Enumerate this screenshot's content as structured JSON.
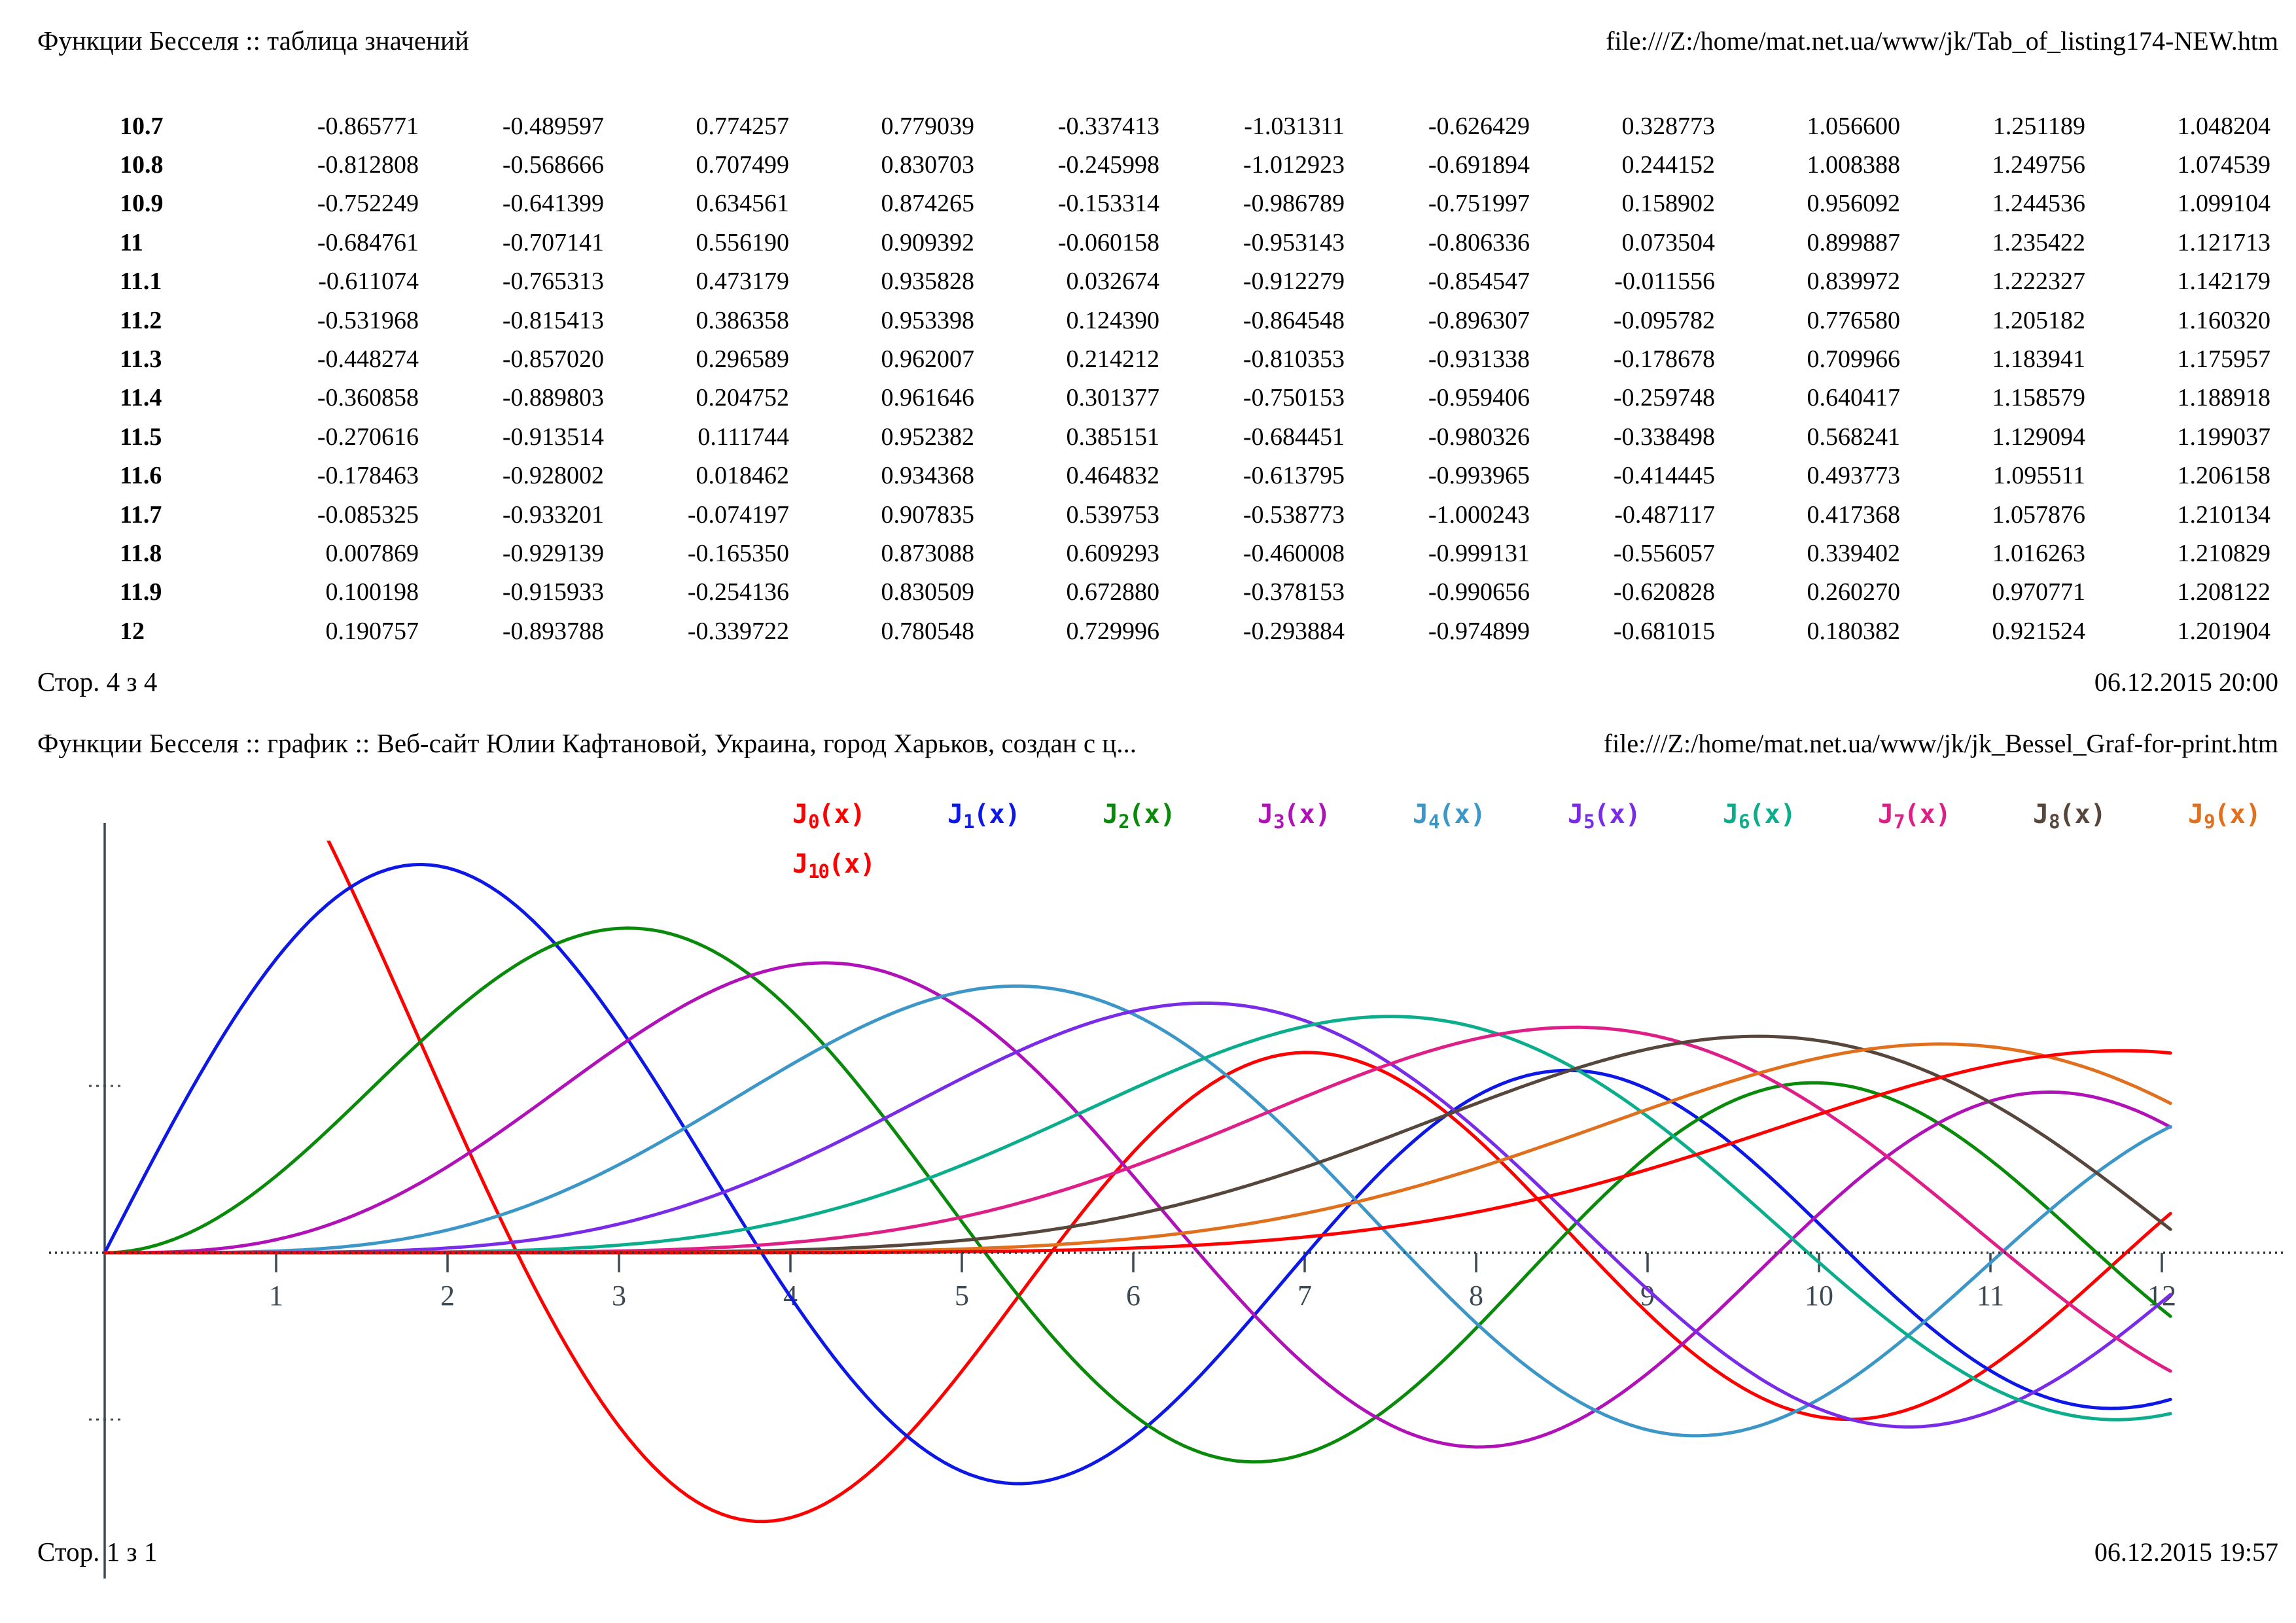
{
  "page1": {
    "title": "Функции Бесселя :: таблица значений",
    "url": "file:///Z:/home/mat.net.ua/www/jk/Tab_of_listing174-NEW.htm",
    "footer_page": "Стор. 4 з 4",
    "footer_datetime": "06.12.2015 20:00",
    "table": {
      "rows": [
        {
          "x": "10.7",
          "values": [
            "-0.865771",
            "-0.489597",
            "0.774257",
            "0.779039",
            "-0.337413",
            "-1.031311",
            "-0.626429",
            "0.328773",
            "1.056600",
            "1.251189",
            "1.048204"
          ]
        },
        {
          "x": "10.8",
          "values": [
            "-0.812808",
            "-0.568666",
            "0.707499",
            "0.830703",
            "-0.245998",
            "-1.012923",
            "-0.691894",
            "0.244152",
            "1.008388",
            "1.249756",
            "1.074539"
          ]
        },
        {
          "x": "10.9",
          "values": [
            "-0.752249",
            "-0.641399",
            "0.634561",
            "0.874265",
            "-0.153314",
            "-0.986789",
            "-0.751997",
            "0.158902",
            "0.956092",
            "1.244536",
            "1.099104"
          ]
        },
        {
          "x": "11",
          "values": [
            "-0.684761",
            "-0.707141",
            "0.556190",
            "0.909392",
            "-0.060158",
            "-0.953143",
            "-0.806336",
            "0.073504",
            "0.899887",
            "1.235422",
            "1.121713"
          ]
        },
        {
          "x": "11.1",
          "values": [
            "-0.611074",
            "-0.765313",
            "0.473179",
            "0.935828",
            "0.032674",
            "-0.912279",
            "-0.854547",
            "-0.011556",
            "0.839972",
            "1.222327",
            "1.142179"
          ]
        },
        {
          "x": "11.2",
          "values": [
            "-0.531968",
            "-0.815413",
            "0.386358",
            "0.953398",
            "0.124390",
            "-0.864548",
            "-0.896307",
            "-0.095782",
            "0.776580",
            "1.205182",
            "1.160320"
          ]
        },
        {
          "x": "11.3",
          "values": [
            "-0.448274",
            "-0.857020",
            "0.296589",
            "0.962007",
            "0.214212",
            "-0.810353",
            "-0.931338",
            "-0.178678",
            "0.709966",
            "1.183941",
            "1.175957"
          ]
        },
        {
          "x": "11.4",
          "values": [
            "-0.360858",
            "-0.889803",
            "0.204752",
            "0.961646",
            "0.301377",
            "-0.750153",
            "-0.959406",
            "-0.259748",
            "0.640417",
            "1.158579",
            "1.188918"
          ]
        },
        {
          "x": "11.5",
          "values": [
            "-0.270616",
            "-0.913514",
            "0.111744",
            "0.952382",
            "0.385151",
            "-0.684451",
            "-0.980326",
            "-0.338498",
            "0.568241",
            "1.129094",
            "1.199037"
          ]
        },
        {
          "x": "11.6",
          "values": [
            "-0.178463",
            "-0.928002",
            "0.018462",
            "0.934368",
            "0.464832",
            "-0.613795",
            "-0.993965",
            "-0.414445",
            "0.493773",
            "1.095511",
            "1.206158"
          ]
        },
        {
          "x": "11.7",
          "values": [
            "-0.085325",
            "-0.933201",
            "-0.074197",
            "0.907835",
            "0.539753",
            "-0.538773",
            "-1.000243",
            "-0.487117",
            "0.417368",
            "1.057876",
            "1.210134"
          ]
        },
        {
          "x": "11.8",
          "values": [
            "0.007869",
            "-0.929139",
            "-0.165350",
            "0.873088",
            "0.609293",
            "-0.460008",
            "-0.999131",
            "-0.556057",
            "0.339402",
            "1.016263",
            "1.210829"
          ]
        },
        {
          "x": "11.9",
          "values": [
            "0.100198",
            "-0.915933",
            "-0.254136",
            "0.830509",
            "0.672880",
            "-0.378153",
            "-0.990656",
            "-0.620828",
            "0.260270",
            "0.970771",
            "1.208122"
          ]
        },
        {
          "x": "12",
          "values": [
            "0.190757",
            "-0.893788",
            "-0.339722",
            "0.780548",
            "0.729996",
            "-0.293884",
            "-0.974899",
            "-0.681015",
            "0.180382",
            "0.921524",
            "1.201904"
          ]
        }
      ]
    }
  },
  "page2": {
    "title": "Функции Бесселя :: график :: Веб-сайт Юлии Кафтановой, Украина, город Харьков, создан с ц...",
    "url": "file:///Z:/home/mat.net.ua/www/jk/jk_Bessel_Graf-for-print.htm",
    "footer_page": "Стор. 1 з 1",
    "footer_datetime": "06.12.2015 19:57"
  },
  "chart_data": {
    "type": "line",
    "title": "",
    "xlabel": "",
    "ylabel": "",
    "x_range": [
      0,
      12.05
    ],
    "x_step": 0.05,
    "x_ticks": [
      1,
      2,
      3,
      4,
      5,
      6,
      7,
      8,
      9,
      10,
      11,
      12
    ],
    "y_ticks": [
      0.25,
      -0.25
    ],
    "ylim": [
      -0.62,
      0.62
    ],
    "grid": false,
    "legend_position": "top-inside",
    "y_function": "besselJ(order, x) — Bessel function of the first kind",
    "axis_color": "#3d4a54",
    "series": [
      {
        "name": "J0(x)",
        "label_base": "J",
        "label_sub": "0",
        "label_suffix": "(x)",
        "bessel_order": 0,
        "color": "#ff0000",
        "legend_row": 1
      },
      {
        "name": "J1(x)",
        "label_base": "J",
        "label_sub": "1",
        "label_suffix": "(x)",
        "bessel_order": 1,
        "color": "#0d17e6",
        "legend_row": 1
      },
      {
        "name": "J2(x)",
        "label_base": "J",
        "label_sub": "2",
        "label_suffix": "(x)",
        "bessel_order": 2,
        "color": "#0a8a0a",
        "legend_row": 1
      },
      {
        "name": "J3(x)",
        "label_base": "J",
        "label_sub": "3",
        "label_suffix": "(x)",
        "bessel_order": 3,
        "color": "#b012b8",
        "legend_row": 1
      },
      {
        "name": "J4(x)",
        "label_base": "J",
        "label_sub": "4",
        "label_suffix": "(x)",
        "bessel_order": 4,
        "color": "#3c96c8",
        "legend_row": 1
      },
      {
        "name": "J5(x)",
        "label_base": "J",
        "label_sub": "5",
        "label_suffix": "(x)",
        "bessel_order": 5,
        "color": "#7a2be8",
        "legend_row": 1
      },
      {
        "name": "J6(x)",
        "label_base": "J",
        "label_sub": "6",
        "label_suffix": "(x)",
        "bessel_order": 6,
        "color": "#0cad8c",
        "legend_row": 1
      },
      {
        "name": "J7(x)",
        "label_base": "J",
        "label_sub": "7",
        "label_suffix": "(x)",
        "bessel_order": 7,
        "color": "#de1f87",
        "legend_row": 1
      },
      {
        "name": "J8(x)",
        "label_base": "J",
        "label_sub": "8",
        "label_suffix": "(x)",
        "bessel_order": 8,
        "color": "#56463c",
        "legend_row": 1
      },
      {
        "name": "J9(x)",
        "label_base": "J",
        "label_sub": "9",
        "label_suffix": "(x)",
        "bessel_order": 9,
        "color": "#e0701e",
        "legend_row": 1
      },
      {
        "name": "J10(x)",
        "label_base": "J",
        "label_sub": "10",
        "label_suffix": "(x)",
        "bessel_order": 10,
        "color": "#ff0000",
        "legend_row": 2
      }
    ]
  }
}
